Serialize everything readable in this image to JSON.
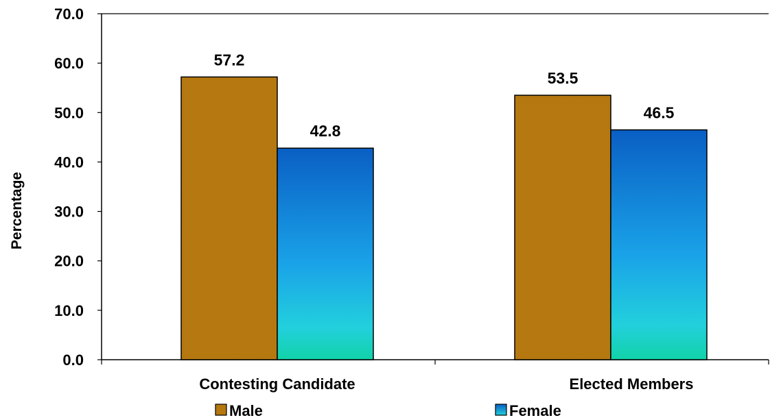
{
  "chart_data": {
    "type": "bar",
    "categories": [
      "Contesting Candidate",
      "Elected  Members"
    ],
    "series": [
      {
        "name": "Male",
        "values": [
          57.2,
          53.5
        ],
        "color": "#E89A0A"
      },
      {
        "name": "Female",
        "values": [
          42.8,
          46.5
        ],
        "color": "#1F86E0"
      }
    ],
    "value_labels": [
      [
        "57.2",
        "53.5"
      ],
      [
        "42.8",
        "46.5"
      ]
    ],
    "ylabel": "Percentage",
    "xlabel": "",
    "title": "",
    "ylim": [
      0,
      70
    ],
    "y_ticks": [
      0,
      10,
      20,
      30,
      40,
      50,
      60,
      70
    ],
    "y_tick_labels": [
      "0.0",
      "10.0",
      "20.0",
      "30.0",
      "40.0",
      "50.0",
      "60.0",
      "70.0"
    ],
    "grid": false,
    "legend_position": "bottom"
  }
}
